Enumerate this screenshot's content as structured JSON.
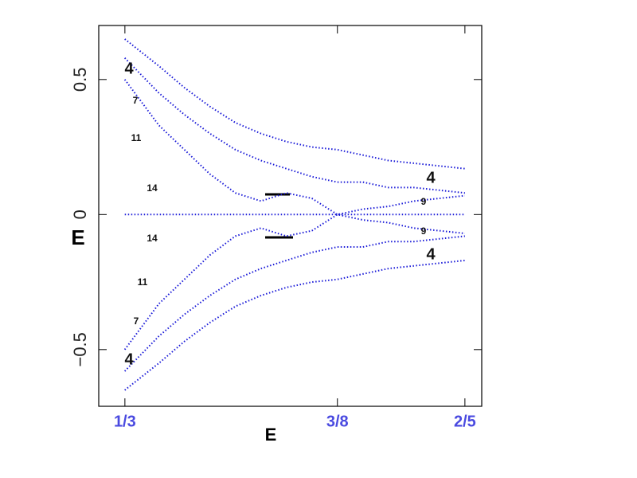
{
  "chart_data": {
    "type": "line",
    "x_label": "E",
    "y_label": "E",
    "xlim": [
      0.3282,
      0.4033
    ],
    "ylim": [
      -0.71,
      0.7
    ],
    "xticks": [
      {
        "value": 0.33333,
        "label": "1/3"
      },
      {
        "value": 0.375,
        "label": "3/8"
      },
      {
        "value": 0.4,
        "label": "2/5"
      }
    ],
    "yticks": [
      {
        "value": -0.5,
        "label": "−0.5"
      },
      0,
      0.5
    ],
    "x": [
      0.3333,
      0.34,
      0.345,
      0.35,
      0.355,
      0.36,
      0.365,
      0.37,
      0.375,
      0.38,
      0.385,
      0.39,
      0.395,
      0.4
    ],
    "color": "#1a1ad8",
    "series": [
      {
        "values": [
          0.65,
          0.55,
          0.47,
          0.4,
          0.34,
          0.3,
          0.27,
          0.25,
          0.24,
          0.22,
          0.2,
          0.19,
          0.18,
          0.17
        ]
      },
      {
        "values": [
          0.58,
          0.45,
          0.37,
          0.3,
          0.24,
          0.2,
          0.17,
          0.14,
          0.12,
          0.12,
          0.1,
          0.1,
          0.09,
          0.08
        ]
      },
      {
        "values": [
          0.5,
          0.33,
          0.24,
          0.15,
          0.08,
          0.05,
          0.08,
          0.06,
          0.0,
          0.02,
          0.03,
          0.05,
          0.06,
          0.07
        ]
      },
      {
        "values": [
          0,
          0,
          0,
          0,
          0,
          0,
          0,
          0,
          0,
          0,
          0,
          0,
          0,
          0
        ]
      },
      {
        "values": [
          -0.5,
          -0.33,
          -0.24,
          -0.15,
          -0.08,
          -0.05,
          -0.08,
          -0.06,
          0.0,
          -0.02,
          -0.03,
          -0.05,
          -0.06,
          -0.07
        ]
      },
      {
        "values": [
          -0.58,
          -0.45,
          -0.37,
          -0.3,
          -0.24,
          -0.2,
          -0.17,
          -0.14,
          -0.12,
          -0.12,
          -0.1,
          -0.1,
          -0.09,
          -0.08
        ]
      },
      {
        "values": [
          -0.65,
          -0.55,
          -0.47,
          -0.4,
          -0.34,
          -0.3,
          -0.27,
          -0.25,
          -0.24,
          -0.22,
          -0.2,
          -0.19,
          -0.18,
          -0.17
        ]
      }
    ],
    "annotations": [
      "4",
      "7",
      "11",
      "14",
      "14",
      "11",
      "7",
      "4",
      "4",
      "9",
      "9",
      "4"
    ]
  }
}
